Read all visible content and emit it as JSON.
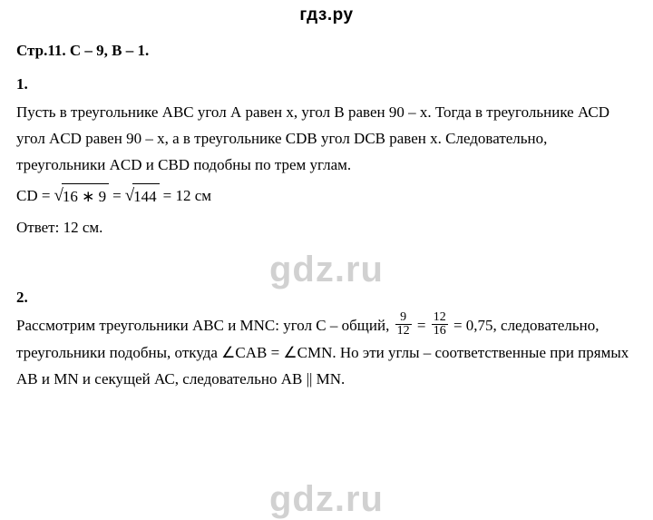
{
  "watermark": "гдз.ру",
  "watermark_large": "gdz.ru",
  "header": "Стр.11. С – 9, В – 1.",
  "task1": {
    "number": "1.",
    "text": "Пусть в треугольнике АВС угол А равен х, угол В равен 90 – х. Тогда в треугольнике АСD угол ACD равен 90 – х, а в треугольнике CDB угол DCB равен х. Следовательно, треугольники ACD и CBD подобны по трем углам.",
    "formula_lhs": "CD = ",
    "radicand1": "16 ∗ 9",
    "eq1": " = ",
    "radicand2": "144",
    "eq2": " = 12 см",
    "answer": "Ответ: 12 см."
  },
  "task2": {
    "number": "2.",
    "text_a": "Рассмотрим треугольники АВС и MNC: угол С – общий, ",
    "frac1_num": "9",
    "frac1_den": "12",
    "mid1": " = ",
    "frac2_num": "12",
    "frac2_den": "16",
    "mid2": " = 0,75,",
    "text_b": "следовательно, треугольники подобны, откуда ∠CAB = ∠CMN. Но эти углы – соответственные при прямых АВ и MN и секущей АС, следовательно АВ || MN."
  },
  "colors": {
    "text": "#000000",
    "background": "#ffffff",
    "watermark_large": "rgba(0,0,0,0.18)"
  }
}
